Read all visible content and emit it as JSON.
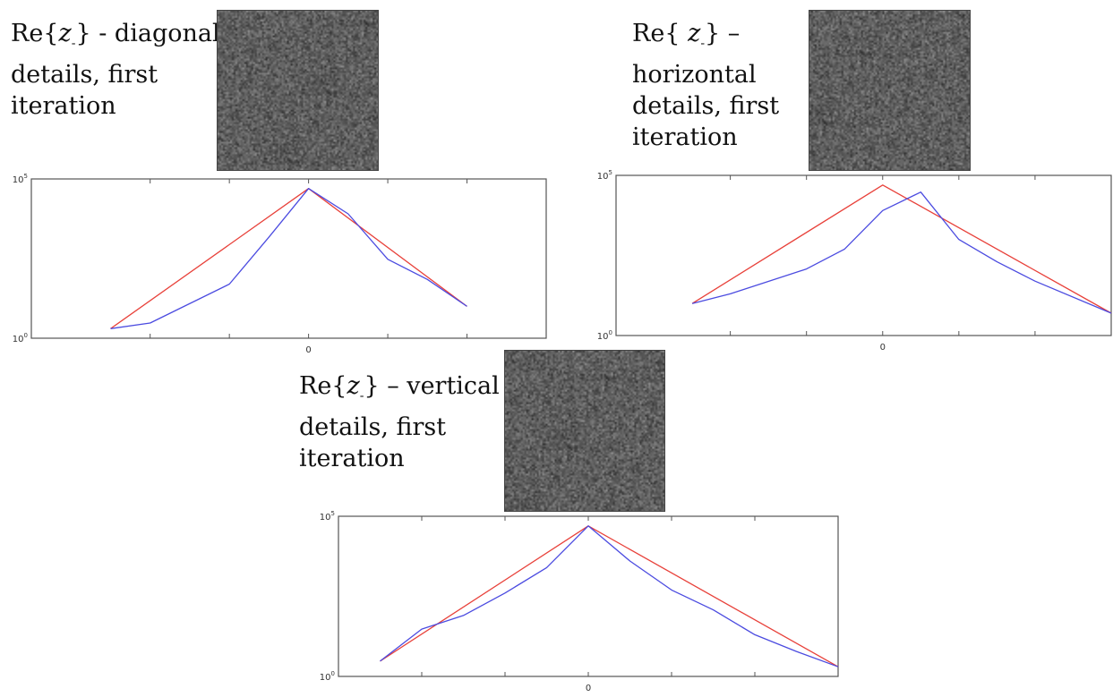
{
  "colors": {
    "fit_line": "#e8413a",
    "empirical_line": "#4b4be0",
    "axis": "#555555",
    "thumbnail_gray": "#6f6f6f"
  },
  "panels": [
    {
      "id": "diagonal",
      "caption": {
        "re_prefix": "Re{",
        "var": "z",
        "sub": "-",
        "suffix": "} - diagonal",
        "lines": [
          "details, first",
          "iteration"
        ]
      },
      "y_tick_top_base": "10",
      "y_tick_top_exp": "5",
      "y_tick_bottom_base": "10",
      "y_tick_bottom_exp": "0",
      "x_tick_label": "0"
    },
    {
      "id": "horizontal",
      "caption": {
        "re_prefix": "Re{ ",
        "var": "z",
        "sub": "-",
        "suffix": "} –",
        "lines": [
          "horizontal",
          "details, first",
          "iteration"
        ]
      },
      "y_tick_top_base": "10",
      "y_tick_top_exp": "5",
      "y_tick_bottom_base": "10",
      "y_tick_bottom_exp": "0",
      "x_tick_label": "0"
    },
    {
      "id": "vertical",
      "caption": {
        "re_prefix": "Re{",
        "var": "z",
        "sub": "-",
        "suffix": "} – vertical",
        "lines": [
          "details, first",
          "iteration"
        ]
      },
      "y_tick_top_base": "10",
      "y_tick_top_exp": "5",
      "y_tick_bottom_base": "10",
      "y_tick_bottom_exp": "0",
      "x_tick_label": "0"
    }
  ],
  "chart_data": [
    {
      "type": "line",
      "panel": "diagonal",
      "y_scale": "log",
      "ylim": [
        1,
        100000
      ],
      "xlim": [
        -3.5,
        3
      ],
      "x_ticks": [
        -2,
        -1,
        0,
        1,
        2
      ],
      "x_tick_labels": [
        "",
        "",
        "0",
        "",
        ""
      ],
      "grid": false,
      "series": [
        {
          "color": "#e8413a",
          "x": [
            -2.5,
            0,
            2
          ],
          "y": [
            2,
            50000,
            10
          ]
        },
        {
          "color": "#4b4be0",
          "x": [
            -2.5,
            -2,
            -1,
            -0.5,
            0,
            0.5,
            1,
            1.5,
            2
          ],
          "y": [
            2,
            3,
            50,
            1500,
            50000,
            8000,
            300,
            70,
            10
          ]
        }
      ]
    },
    {
      "type": "line",
      "panel": "horizontal",
      "y_scale": "log",
      "ylim": [
        1,
        100000
      ],
      "xlim": [
        -3.5,
        3
      ],
      "x_ticks": [
        -2,
        -1,
        0,
        1,
        2
      ],
      "x_tick_labels": [
        "",
        "",
        "0",
        "",
        ""
      ],
      "grid": false,
      "series": [
        {
          "color": "#e8413a",
          "x": [
            -2.5,
            0,
            3
          ],
          "y": [
            10,
            50000,
            5
          ]
        },
        {
          "color": "#4b4be0",
          "x": [
            -2.5,
            -2,
            -1,
            -0.5,
            0,
            0.5,
            1,
            1.5,
            2,
            3
          ],
          "y": [
            10,
            20,
            120,
            500,
            8000,
            30000,
            1000,
            200,
            50,
            5
          ]
        }
      ]
    },
    {
      "type": "line",
      "panel": "vertical",
      "y_scale": "log",
      "ylim": [
        1,
        100000
      ],
      "xlim": [
        -3,
        3
      ],
      "x_ticks": [
        -2,
        -1,
        0,
        1,
        2
      ],
      "x_tick_labels": [
        "",
        "",
        "0",
        "",
        ""
      ],
      "grid": false,
      "series": [
        {
          "color": "#e8413a",
          "x": [
            -2.5,
            0,
            3
          ],
          "y": [
            3,
            50000,
            2
          ]
        },
        {
          "color": "#4b4be0",
          "x": [
            -2.5,
            -2,
            -1.5,
            -1,
            -0.5,
            0,
            0.5,
            1,
            1.5,
            2,
            2.5,
            3
          ],
          "y": [
            3,
            30,
            80,
            400,
            2500,
            50000,
            4000,
            500,
            120,
            20,
            6,
            2
          ]
        }
      ]
    }
  ]
}
